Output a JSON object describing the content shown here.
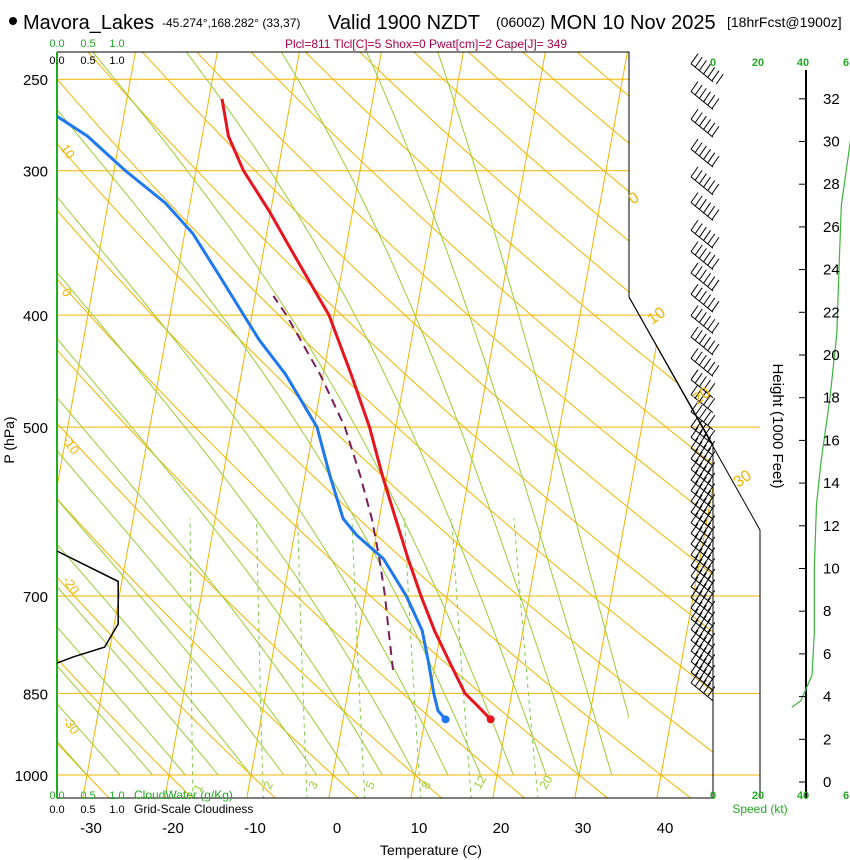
{
  "header": {
    "station": "Mavora_Lakes",
    "coords": "-45.274°,168.282° (33,37)",
    "valid_label": "Valid 1900 NZDT",
    "utc_label": "(0600Z)",
    "date_label": "MON 10 Nov 2025",
    "forecast_label": "[18hrFcst@1900z]",
    "params_line": "Plcl=811 Tlcl[C]=5 Shox=0 Pwat[cm]=2 Cape[J]= 349"
  },
  "colors": {
    "isotherm": "#f0b400",
    "dry_adiabat": "#f0b400",
    "moist_adiabat": "#9acd32",
    "mixing_ratio": "#7ec850",
    "temperature": "#e8141e",
    "dewpoint": "#1e78f0",
    "parcel": "#7a1e5a",
    "wind_speed": "#3cb43c",
    "cloud": "#000000",
    "axis_green": "#22aa22",
    "params_text": "#aa0044"
  },
  "chart_data": {
    "type": "skew-t log-p sounding",
    "xlabel": "Temperature (C)",
    "ylabel": "P (hPa)",
    "y2label": "Height (1000 Feet)",
    "speed_label": "Speed (kt)",
    "x_ticks": [
      -30,
      -20,
      -10,
      0,
      10,
      20,
      30,
      40
    ],
    "p_ticks": [
      250,
      300,
      400,
      500,
      700,
      850,
      1000
    ],
    "height_ticks": [
      0,
      2,
      4,
      6,
      8,
      10,
      12,
      14,
      16,
      18,
      20,
      22,
      24,
      26,
      28,
      30,
      32
    ],
    "cloud_axis_ticks": [
      "0.0",
      "0.5",
      "1.0"
    ],
    "cloud_water_label": "CloudWater (g/Kg)",
    "cloudiness_label": "Grid-Scale Cloudiness",
    "speed_ticks": [
      "0",
      "20",
      "40",
      "6"
    ],
    "mixing_ratio_labels": [
      "1",
      "2",
      "3",
      "5",
      "8",
      "12",
      "20"
    ],
    "dry_adiabat_labels": [
      "10",
      "0",
      "-10",
      "-20",
      "-30"
    ],
    "moist_adiabat_labels": [
      "0",
      "10",
      "20",
      "30"
    ],
    "temperature": [
      {
        "p": 895,
        "t": 18.0
      },
      {
        "p": 870,
        "t": 16.0
      },
      {
        "p": 850,
        "t": 14.3
      },
      {
        "p": 800,
        "t": 11.8
      },
      {
        "p": 750,
        "t": 9.2
      },
      {
        "p": 700,
        "t": 6.8
      },
      {
        "p": 650,
        "t": 4.4
      },
      {
        "p": 600,
        "t": 2.0
      },
      {
        "p": 550,
        "t": -0.6
      },
      {
        "p": 500,
        "t": -3.2
      },
      {
        "p": 450,
        "t": -6.6
      },
      {
        "p": 400,
        "t": -10.6
      },
      {
        "p": 380,
        "t": -13.0
      },
      {
        "p": 350,
        "t": -16.8
      },
      {
        "p": 325,
        "t": -20.2
      },
      {
        "p": 300,
        "t": -24.2
      },
      {
        "p": 280,
        "t": -26.8
      },
      {
        "p": 260,
        "t": -28.4
      }
    ],
    "dewpoint": [
      {
        "p": 895,
        "t": 12.5
      },
      {
        "p": 880,
        "t": 11.4
      },
      {
        "p": 850,
        "t": 10.5
      },
      {
        "p": 800,
        "t": 9.2
      },
      {
        "p": 750,
        "t": 7.7
      },
      {
        "p": 700,
        "t": 5.0
      },
      {
        "p": 650,
        "t": 1.4
      },
      {
        "p": 620,
        "t": -2.4
      },
      {
        "p": 600,
        "t": -4.4
      },
      {
        "p": 550,
        "t": -7.0
      },
      {
        "p": 500,
        "t": -9.6
      },
      {
        "p": 450,
        "t": -14.6
      },
      {
        "p": 420,
        "t": -18.6
      },
      {
        "p": 400,
        "t": -21.0
      },
      {
        "p": 370,
        "t": -24.8
      },
      {
        "p": 340,
        "t": -29.0
      },
      {
        "p": 320,
        "t": -33.0
      },
      {
        "p": 300,
        "t": -38.6
      },
      {
        "p": 280,
        "t": -44.0
      },
      {
        "p": 258,
        "t": -52.6
      }
    ],
    "parcel": [
      {
        "p": 811,
        "t": 5.0
      },
      {
        "p": 750,
        "t": 3.6
      },
      {
        "p": 700,
        "t": 2.4
      },
      {
        "p": 650,
        "t": 0.9
      },
      {
        "p": 600,
        "t": -0.9
      },
      {
        "p": 550,
        "t": -3.3
      },
      {
        "p": 500,
        "t": -6.2
      },
      {
        "p": 450,
        "t": -10.4
      },
      {
        "p": 400,
        "t": -15.8
      },
      {
        "p": 385,
        "t": -17.8
      }
    ],
    "surface_temperature": {
      "p": 895,
      "t": 18.0
    },
    "surface_dewpoint": {
      "p": 895,
      "t": 12.5
    },
    "cloudiness": [
      {
        "p": 640,
        "v": 0.0
      },
      {
        "p": 680,
        "v": 0.9
      },
      {
        "p": 740,
        "v": 0.9
      },
      {
        "p": 775,
        "v": 0.7
      },
      {
        "p": 790,
        "v": 0.25
      },
      {
        "p": 800,
        "v": 0.0
      }
    ],
    "wind_speed": [
      {
        "h": 3.5,
        "kt": 35
      },
      {
        "h": 3.8,
        "kt": 39
      },
      {
        "h": 5.0,
        "kt": 44
      },
      {
        "h": 7.0,
        "kt": 45
      },
      {
        "h": 10.0,
        "kt": 45
      },
      {
        "h": 13.0,
        "kt": 46
      },
      {
        "h": 15.0,
        "kt": 48
      },
      {
        "h": 18.0,
        "kt": 52
      },
      {
        "h": 21.0,
        "kt": 55
      },
      {
        "h": 24.0,
        "kt": 56
      },
      {
        "h": 27.0,
        "kt": 57
      },
      {
        "h": 30.0,
        "kt": 61
      },
      {
        "h": 32.5,
        "kt": 66
      }
    ],
    "wind_barbs": [
      {
        "h": 3.8,
        "kt": 45
      },
      {
        "h": 4.3,
        "kt": 45
      },
      {
        "h": 4.8,
        "kt": 45
      },
      {
        "h": 5.3,
        "kt": 45
      },
      {
        "h": 5.8,
        "kt": 45
      },
      {
        "h": 6.3,
        "kt": 45
      },
      {
        "h": 6.8,
        "kt": 45
      },
      {
        "h": 7.3,
        "kt": 45
      },
      {
        "h": 7.8,
        "kt": 45
      },
      {
        "h": 8.3,
        "kt": 45
      },
      {
        "h": 8.8,
        "kt": 45
      },
      {
        "h": 9.3,
        "kt": 45
      },
      {
        "h": 9.8,
        "kt": 45
      },
      {
        "h": 10.3,
        "kt": 45
      },
      {
        "h": 10.8,
        "kt": 45
      },
      {
        "h": 11.3,
        "kt": 45
      },
      {
        "h": 11.8,
        "kt": 45
      },
      {
        "h": 12.3,
        "kt": 45
      },
      {
        "h": 12.8,
        "kt": 45
      },
      {
        "h": 13.3,
        "kt": 45
      },
      {
        "h": 13.8,
        "kt": 50
      },
      {
        "h": 14.3,
        "kt": 50
      },
      {
        "h": 14.8,
        "kt": 50
      },
      {
        "h": 15.3,
        "kt": 50
      },
      {
        "h": 15.8,
        "kt": 50
      },
      {
        "h": 16.5,
        "kt": 50
      },
      {
        "h": 17.3,
        "kt": 50
      },
      {
        "h": 18.0,
        "kt": 50
      },
      {
        "h": 19.0,
        "kt": 55
      },
      {
        "h": 20.0,
        "kt": 55
      },
      {
        "h": 21.0,
        "kt": 55
      },
      {
        "h": 22.0,
        "kt": 55
      },
      {
        "h": 23.0,
        "kt": 55
      },
      {
        "h": 24.0,
        "kt": 55
      },
      {
        "h": 25.0,
        "kt": 55
      },
      {
        "h": 26.3,
        "kt": 55
      },
      {
        "h": 27.5,
        "kt": 55
      },
      {
        "h": 28.8,
        "kt": 60
      },
      {
        "h": 30.2,
        "kt": 60
      },
      {
        "h": 31.5,
        "kt": 60
      },
      {
        "h": 32.8,
        "kt": 65
      }
    ]
  }
}
